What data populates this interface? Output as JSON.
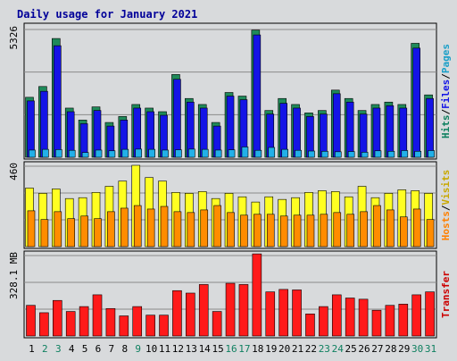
{
  "chart_data": {
    "type": "bar",
    "title": "Daily usage for January 2021",
    "categories": [
      "1",
      "2",
      "3",
      "4",
      "5",
      "6",
      "7",
      "8",
      "9",
      "10",
      "11",
      "12",
      "13",
      "14",
      "15",
      "16",
      "17",
      "18",
      "19",
      "20",
      "21",
      "22",
      "23",
      "24",
      "25",
      "26",
      "27",
      "28",
      "29",
      "30",
      "31"
    ],
    "weekend_categories": [
      "2",
      "3",
      "9",
      "16",
      "17",
      "23",
      "24",
      "30",
      "31"
    ],
    "colors": {
      "hits": "#1f8a5a",
      "files": "#1414e6",
      "pages": "#22b0e8",
      "hosts": "#ff8c00",
      "visits": "#ffff22",
      "transfer": "#ff1a1a",
      "weekday_label": "#000000",
      "weekend_label": "#0f8060",
      "hits_axis": "#0f8060",
      "pages_axis": "#1a9fc8",
      "hosts_axis": "#ff8000",
      "visits_axis": "#c8a800",
      "transfer_axis": "#cc0000",
      "title": "#000099"
    },
    "panels": [
      {
        "id": "hits",
        "max_label": "5326",
        "ylim": [
          0,
          5326
        ],
        "axis_labels": [
          {
            "text": "Hits",
            "color_key": "hits_axis"
          },
          {
            "text": "Files",
            "color_key": "files"
          },
          {
            "text": "Pages",
            "color_key": "pages_axis"
          }
        ],
        "series": [
          {
            "name": "Hits",
            "color_key": "hits",
            "values": [
              2500,
              2950,
              4950,
              2050,
              1550,
              2100,
              1450,
              1700,
              2200,
              2050,
              1900,
              3450,
              2450,
              2200,
              1450,
              2700,
              2550,
              5300,
              1950,
              2450,
              2200,
              1850,
              1950,
              2800,
              2450,
              1950,
              2200,
              2300,
              2200,
              4750,
              2600
            ]
          },
          {
            "name": "Files",
            "color_key": "files",
            "values": [
              2350,
              2750,
              4650,
              1900,
              1400,
              1950,
              1300,
              1550,
              2050,
              1900,
              1750,
              3250,
              2300,
              2050,
              1300,
              2550,
              2400,
              5100,
              1800,
              2250,
              2050,
              1700,
              1800,
              2650,
              2300,
              1800,
              2050,
              2150,
              2050,
              4550,
              2450
            ]
          },
          {
            "name": "Pages",
            "color_key": "pages",
            "values": [
              300,
              330,
              320,
              290,
              200,
              300,
              270,
              330,
              340,
              330,
              300,
              310,
              340,
              330,
              300,
              310,
              430,
              290,
              410,
              330,
              290,
              260,
              250,
              230,
              240,
              210,
              270,
              250,
              280,
              250,
              280
            ]
          }
        ]
      },
      {
        "id": "visits",
        "max_label": "460",
        "ylim": [
          0,
          460
        ],
        "axis_labels": [
          {
            "text": "Hosts",
            "color_key": "hosts_axis"
          },
          {
            "text": "Visits",
            "color_key": "visits_axis"
          }
        ],
        "series": [
          {
            "name": "Visits",
            "color_key": "visits",
            "values": [
              335,
              305,
              330,
              275,
              280,
              310,
              345,
              375,
              465,
              395,
              375,
              310,
              305,
              315,
              275,
              305,
              285,
              255,
              285,
              270,
              280,
              310,
              320,
              315,
              285,
              345,
              280,
              305,
              325,
              320,
              305
            ]
          },
          {
            "name": "Hosts",
            "color_key": "hosts",
            "values": [
              205,
              155,
              200,
              160,
              175,
              160,
              200,
              220,
              235,
              215,
              230,
              200,
              195,
              210,
              235,
              195,
              180,
              185,
              185,
              175,
              180,
              180,
              185,
              195,
              185,
              200,
              235,
              210,
              170,
              215,
              155
            ]
          }
        ]
      },
      {
        "id": "transfer",
        "max_label": "328.1 MB",
        "ylim": [
          0,
          328.1
        ],
        "axis_labels": [
          {
            "text": "Transfer",
            "color_key": "transfer_axis"
          }
        ],
        "series": [
          {
            "name": "Transfer",
            "color_key": "transfer",
            "values": [
              125,
              95,
              145,
              100,
              120,
              168,
              112,
              82,
              120,
              85,
              85,
              185,
              175,
              210,
              100,
              215,
              210,
              335,
              180,
              190,
              188,
              90,
              120,
              168,
              155,
              150,
              105,
              125,
              130,
              168,
              180
            ]
          }
        ]
      }
    ]
  }
}
